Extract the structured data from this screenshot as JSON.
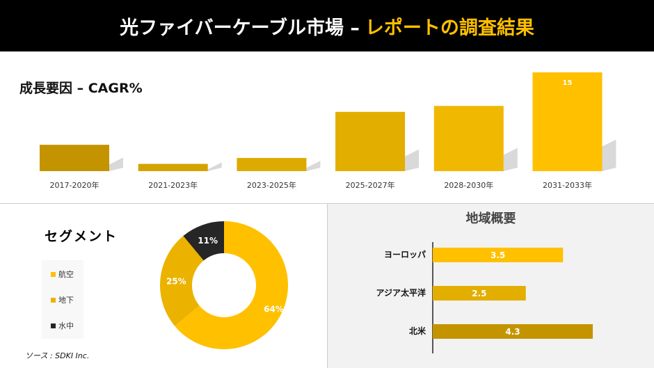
{
  "header": {
    "title": "光ファイバーケーブル市場 – ",
    "title_accent": "レポートの調査結果"
  },
  "colors": {
    "accent": "#ffc000",
    "dark": "#262626",
    "header_bg": "#000000"
  },
  "chart_data": [
    {
      "type": "bar",
      "title": "成長要因 – CAGR%",
      "categories": [
        "2017-2020年",
        "2021-2023年",
        "2023-2025年",
        "2025-2027年",
        "2028-2030年",
        "2031-2033年"
      ],
      "values": [
        4.0,
        1.1,
        2.0,
        9.0,
        9.9,
        15
      ],
      "data_labels": {
        "5": "15"
      },
      "colors": [
        "#c49400",
        "#d4a300",
        "#dcaa00",
        "#e2ae00",
        "#f0b800",
        "#ffc000"
      ]
    },
    {
      "type": "pie",
      "title": "セグメント",
      "donut": true,
      "categories": [
        "航空",
        "地下",
        "水中"
      ],
      "values": [
        64,
        25,
        11
      ],
      "labels": [
        "64%",
        "25%",
        "11%"
      ],
      "colors": [
        "#ffc000",
        "#ecb200",
        "#262626"
      ],
      "legend": "left"
    },
    {
      "type": "bar",
      "orientation": "horizontal",
      "title": "地域概要",
      "categories": [
        "ヨーロッパ",
        "アジア太平洋",
        "北米"
      ],
      "values": [
        3.5,
        2.5,
        4.3
      ],
      "labels": [
        "3.5",
        "2.5",
        "4.3"
      ],
      "colors": [
        "#ffc000",
        "#e2ae00",
        "#c49400"
      ]
    }
  ],
  "source": "ソース : SDKI Inc."
}
